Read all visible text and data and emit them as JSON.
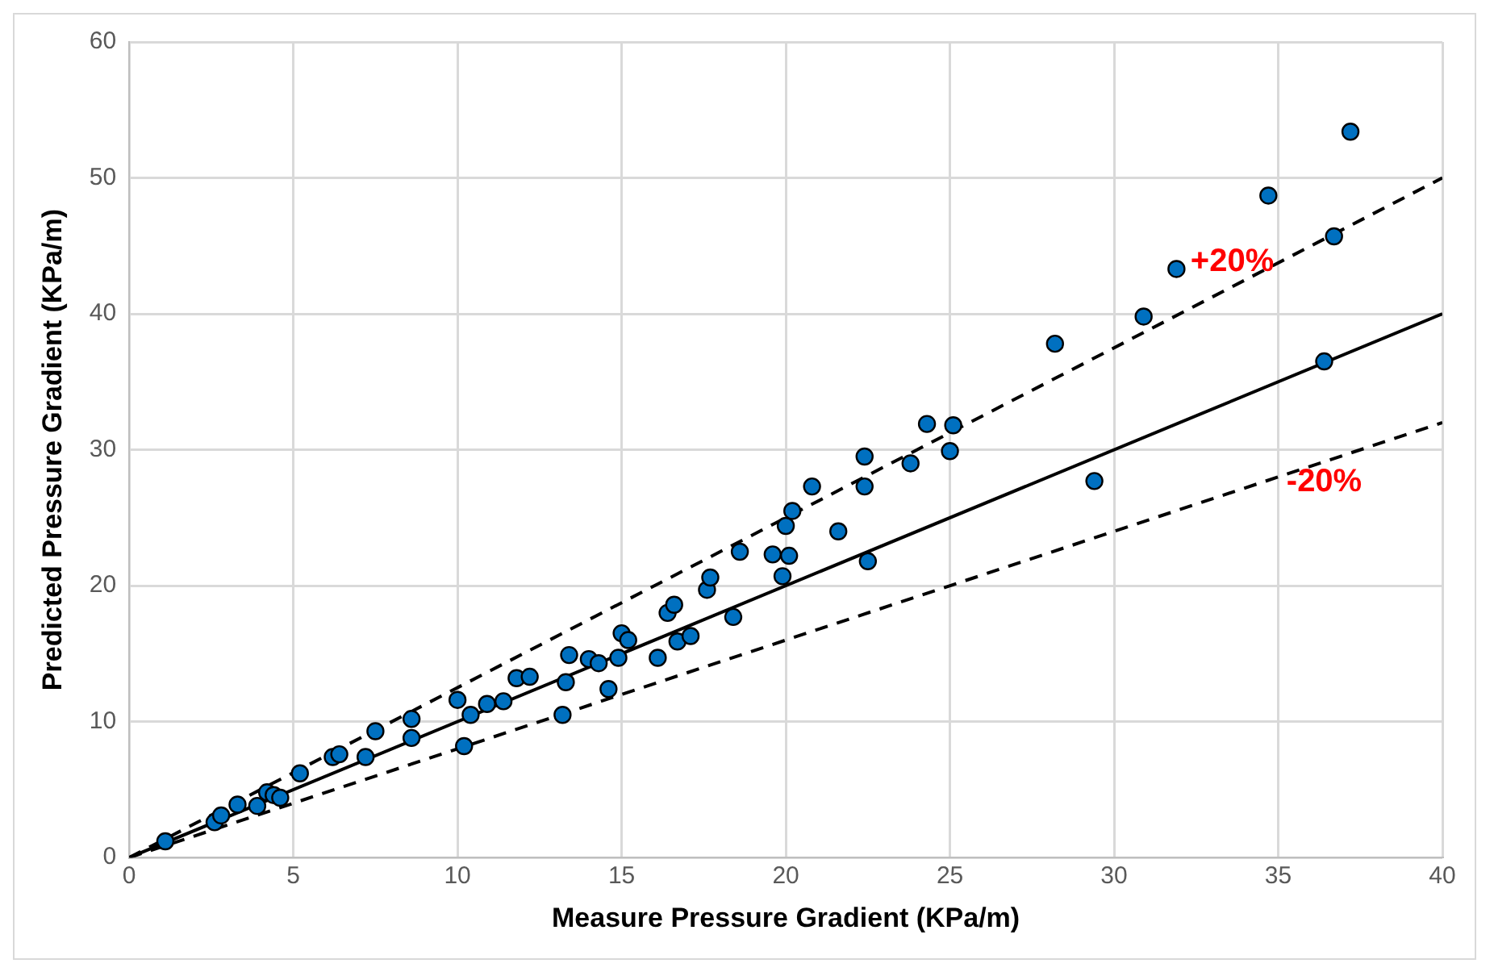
{
  "chart_data": {
    "type": "scatter",
    "xlabel": "Measure Pressure Gradient (KPa/m)",
    "ylabel": "Predicted Pressure Gradient (KPa/m)",
    "xlim": [
      0,
      40
    ],
    "xticks": [
      0,
      5,
      10,
      15,
      20,
      25,
      30,
      35,
      40
    ],
    "ylim": [
      0,
      60
    ],
    "yticks": [
      0,
      10,
      20,
      30,
      40,
      50,
      60
    ],
    "grid": true,
    "legend": false,
    "series": [
      {
        "type": "scatter",
        "color": "#0070c0",
        "marker": "circle",
        "x": [
          1.1,
          2.6,
          2.8,
          3.3,
          3.9,
          4.2,
          4.4,
          4.6,
          5.2,
          6.2,
          6.4,
          7.2,
          7.5,
          8.6,
          8.6,
          10.0,
          10.2,
          10.4,
          10.9,
          11.4,
          11.8,
          12.2,
          13.2,
          13.3,
          13.4,
          14.0,
          14.3,
          14.6,
          14.9,
          15.0,
          15.2,
          16.1,
          16.4,
          16.6,
          16.7,
          17.1,
          17.6,
          17.7,
          18.4,
          18.6,
          19.6,
          19.9,
          20.0,
          20.1,
          20.2,
          20.8,
          21.6,
          22.4,
          22.4,
          22.5,
          23.8,
          24.3,
          25.0,
          25.1,
          28.2,
          29.4,
          30.9,
          31.9,
          34.7,
          36.4,
          36.7,
          37.2
        ],
        "values": [
          1.2,
          2.6,
          3.1,
          3.9,
          3.8,
          4.8,
          4.6,
          4.4,
          6.2,
          7.4,
          7.6,
          7.4,
          9.3,
          8.8,
          10.2,
          11.6,
          8.2,
          10.5,
          11.3,
          11.5,
          13.2,
          13.3,
          10.5,
          12.9,
          14.9,
          14.6,
          14.3,
          12.4,
          14.7,
          16.5,
          16.0,
          14.7,
          18.0,
          18.6,
          15.9,
          16.3,
          19.7,
          20.6,
          17.7,
          22.5,
          22.3,
          20.7,
          24.4,
          22.2,
          25.5,
          27.3,
          24.0,
          27.3,
          29.5,
          21.8,
          29.0,
          31.9,
          29.9,
          31.8,
          37.8,
          27.7,
          39.8,
          43.3,
          48.7,
          36.5,
          45.7,
          53.4
        ]
      },
      {
        "type": "line",
        "color": "#000000",
        "line_style": "solid",
        "marker": "none",
        "x": [
          0,
          40
        ],
        "values": [
          0,
          40
        ]
      },
      {
        "type": "line",
        "color": "#000000",
        "line_style": "dashed",
        "marker": "none",
        "x": [
          0,
          40
        ],
        "values": [
          0,
          50
        ]
      },
      {
        "type": "line",
        "color": "#000000",
        "line_style": "dashed",
        "marker": "none",
        "x": [
          0,
          40
        ],
        "values": [
          0,
          32
        ]
      }
    ],
    "annotations": [
      "+20%",
      "-20%"
    ]
  }
}
